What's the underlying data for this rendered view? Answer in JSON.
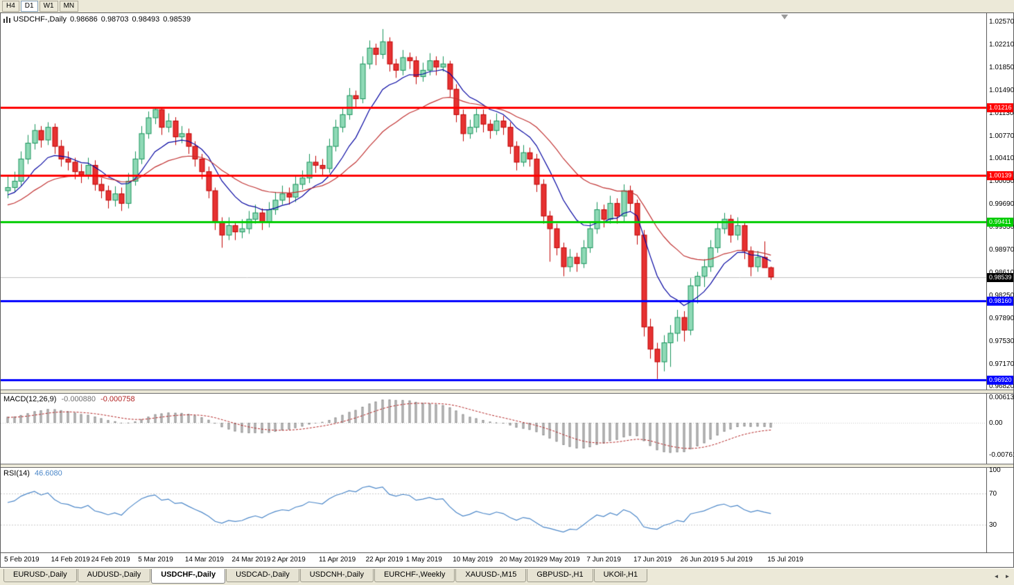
{
  "toolbar": {
    "timeframes": [
      "H4",
      "D1",
      "W1",
      "MN"
    ],
    "active": "D1"
  },
  "chart": {
    "title": {
      "symbol": "USDCHF-,Daily",
      "open": "0.98686",
      "high": "0.98703",
      "low": "0.98493",
      "close": "0.98539"
    },
    "price_axis": {
      "labels": [
        "1.02570",
        "1.02210",
        "1.01850",
        "1.01490",
        "1.01130",
        "1.00770",
        "1.00410",
        "1.00050",
        "0.99690",
        "0.99330",
        "0.98970",
        "0.98610",
        "0.98250",
        "0.97890",
        "0.97530",
        "0.97170",
        "0.96820"
      ],
      "current_price": "0.98539"
    },
    "hlines": [
      {
        "label": "1.01216",
        "value": 1.01216,
        "color": "#FF0000",
        "name": "resistance-line-upper"
      },
      {
        "label": "1.00139",
        "value": 1.00139,
        "color": "#FF0000",
        "name": "resistance-line-lower"
      },
      {
        "label": "0.99411",
        "value": 0.99411,
        "color": "#00CC00",
        "name": "pivot-line-green"
      },
      {
        "label": "0.98160",
        "value": 0.9816,
        "color": "#0000FF",
        "name": "support-line-upper"
      },
      {
        "label": "0.96920",
        "value": 0.9692,
        "color": "#0000FF",
        "name": "support-line-lower"
      }
    ]
  },
  "macd_panel": {
    "label": "MACD(12,26,9)",
    "main_value": "-0.000880",
    "signal_value": "-0.000758",
    "axis_labels": [
      "0.00613",
      "0.00",
      "-0.00761"
    ]
  },
  "rsi_panel": {
    "label": "RSI(14)",
    "value": "46.6080",
    "axis_labels": [
      "100",
      "70",
      "30"
    ]
  },
  "x_axis": {
    "labels": [
      "5 Feb 2019",
      "14 Feb 2019",
      "24 Feb 2019",
      "5 Mar 2019",
      "14 Mar 2019",
      "24 Mar 2019",
      "2 Apr 2019",
      "11 Apr 2019",
      "22 Apr 2019",
      "1 May 2019",
      "10 May 2019",
      "20 May 2019",
      "29 May 2019",
      "7 Jun 2019",
      "17 Jun 2019",
      "26 Jun 2019",
      "5 Jul 2019",
      "15 Jul 2019"
    ]
  },
  "tab_bar": {
    "items": [
      {
        "label": "EURUSD-,Daily"
      },
      {
        "label": "AUDUSD-,Daily"
      },
      {
        "label": "USDCHF-,Daily"
      },
      {
        "label": "USDCAD-,Daily"
      },
      {
        "label": "USDCNH-,Daily"
      },
      {
        "label": "EURCHF-,Weekly"
      },
      {
        "label": "XAUUSD-,M15"
      },
      {
        "label": "GBPUSD-,H1"
      },
      {
        "label": "UKOil-,H1"
      }
    ],
    "active_index": 2
  },
  "colors": {
    "candle_up_fill": "#8FD9B6",
    "candle_up_border": "#17935B",
    "candle_down_fill": "#E63232",
    "candle_down_border": "#C00000",
    "ma_fast": "#0000A0",
    "ma_slow": "#C03030",
    "macd_hist_fill": "#D0D0D0",
    "macd_hist_border": "#8C8C8C",
    "macd_signal": "#B22222",
    "rsi_line": "#4A86C8",
    "current_price_line": "#C0C0C0",
    "current_price_tag": "#000000"
  },
  "chart_data": {
    "type": "candlestick",
    "title": "USDCHF-,Daily",
    "ylim": [
      0.9675,
      1.027
    ],
    "hline_values": [
      1.01216,
      1.00139,
      0.99411,
      0.9816,
      0.9692
    ],
    "indicators": [
      {
        "name": "MACD",
        "params": [
          12,
          26,
          9
        ],
        "last_main": -0.00088,
        "last_signal": -0.000758,
        "axis_range": [
          0.00613,
          -0.00761
        ]
      },
      {
        "name": "RSI",
        "params": [
          14
        ],
        "last_value": 46.608,
        "levels": [
          70,
          30
        ],
        "axis_range": [
          0,
          100
        ]
      }
    ],
    "overlays": [
      {
        "name": "ma-fast",
        "color": "#0000A0"
      },
      {
        "name": "ma-slow",
        "color": "#C03030"
      }
    ],
    "ohlc": [
      [
        0.999,
        1.0012,
        0.9978,
        0.9995
      ],
      [
        0.9995,
        1.002,
        0.9988,
        1.0005
      ],
      [
        1.0005,
        1.0052,
        0.9998,
        1.004
      ],
      [
        1.004,
        1.0078,
        1.0032,
        1.0065
      ],
      [
        1.0065,
        1.0095,
        1.0055,
        1.0085
      ],
      [
        1.0085,
        1.0092,
        1.0058,
        1.007
      ],
      [
        1.007,
        1.0098,
        1.0062,
        1.009
      ],
      [
        1.009,
        1.0096,
        1.0048,
        1.006
      ],
      [
        1.006,
        1.007,
        1.0028,
        1.004
      ],
      [
        1.004,
        1.0052,
        1.0022,
        1.0035
      ],
      [
        1.0035,
        1.0042,
        1.0008,
        1.002
      ],
      [
        1.002,
        1.0032,
        1.0002,
        1.0015
      ],
      [
        1.0015,
        1.0042,
        1.0008,
        1.003
      ],
      [
        1.003,
        1.0038,
        0.999,
        1.0
      ],
      [
        1.0,
        1.001,
        0.9978,
        0.999
      ],
      [
        0.999,
        0.9998,
        0.9962,
        0.9975
      ],
      [
        0.9975,
        0.9997,
        0.9965,
        0.9985
      ],
      [
        0.9985,
        0.9995,
        0.9958,
        0.997
      ],
      [
        0.997,
        1.0018,
        0.9962,
        1.0005
      ],
      [
        1.0005,
        1.0052,
        0.9998,
        1.004
      ],
      [
        1.004,
        1.0092,
        1.0032,
        1.008
      ],
      [
        1.008,
        1.0115,
        1.0072,
        1.0105
      ],
      [
        1.0105,
        1.0122,
        1.0095,
        1.0118
      ],
      [
        1.0118,
        1.012,
        1.0078,
        1.009
      ],
      [
        1.009,
        1.0112,
        1.0082,
        1.01
      ],
      [
        1.01,
        1.0106,
        1.0062,
        1.0075
      ],
      [
        1.0075,
        1.0092,
        1.0065,
        1.008
      ],
      [
        1.008,
        1.0088,
        1.0048,
        1.006
      ],
      [
        1.006,
        1.0068,
        1.0028,
        1.004
      ],
      [
        1.004,
        1.0048,
        1.0008,
        1.002
      ],
      [
        1.002,
        1.0028,
        0.9978,
        0.999
      ],
      [
        0.999,
        0.9995,
        0.9928,
        0.994
      ],
      [
        0.994,
        0.9948,
        0.99,
        0.992
      ],
      [
        0.992,
        0.9948,
        0.9912,
        0.9935
      ],
      [
        0.9935,
        0.9942,
        0.9912,
        0.9925
      ],
      [
        0.9925,
        0.9945,
        0.9915,
        0.993
      ],
      [
        0.993,
        0.9958,
        0.9922,
        0.9945
      ],
      [
        0.9945,
        0.9968,
        0.9938,
        0.9955
      ],
      [
        0.9955,
        0.9962,
        0.9928,
        0.994
      ],
      [
        0.994,
        0.9972,
        0.9932,
        0.996
      ],
      [
        0.996,
        0.9988,
        0.9952,
        0.9975
      ],
      [
        0.9975,
        0.9998,
        0.9968,
        0.9985
      ],
      [
        0.9985,
        0.9995,
        0.9968,
        0.998
      ],
      [
        0.998,
        1.0012,
        0.9972,
        1.0
      ],
      [
        1.0,
        1.0022,
        0.9992,
        1.001
      ],
      [
        1.001,
        1.0048,
        1.0002,
        1.0035
      ],
      [
        1.0035,
        1.0045,
        1.0018,
        1.003
      ],
      [
        1.003,
        1.004,
        1.0012,
        1.0025
      ],
      [
        1.0025,
        1.0072,
        1.0018,
        1.006
      ],
      [
        1.006,
        1.0102,
        1.0052,
        1.009
      ],
      [
        1.009,
        1.0122,
        1.0082,
        1.011
      ],
      [
        1.011,
        1.0152,
        1.0102,
        1.014
      ],
      [
        1.014,
        1.0148,
        1.0122,
        1.0135
      ],
      [
        1.0135,
        1.0202,
        1.0128,
        1.019
      ],
      [
        1.019,
        1.0227,
        1.0182,
        1.0215
      ],
      [
        1.0215,
        1.0222,
        1.0188,
        1.0205
      ],
      [
        1.0205,
        1.0245,
        1.0198,
        1.0225
      ],
      [
        1.0225,
        1.0232,
        1.0178,
        1.019
      ],
      [
        1.019,
        1.0198,
        1.0168,
        1.018
      ],
      [
        1.018,
        1.0212,
        1.0172,
        1.02
      ],
      [
        1.02,
        1.0208,
        1.0182,
        1.0195
      ],
      [
        1.0195,
        1.0202,
        1.0158,
        1.017
      ],
      [
        1.017,
        1.0192,
        1.0162,
        1.018
      ],
      [
        1.018,
        1.0207,
        1.0172,
        1.0195
      ],
      [
        1.0195,
        1.0202,
        1.0172,
        1.0185
      ],
      [
        1.0185,
        1.0202,
        1.0178,
        1.019
      ],
      [
        1.019,
        1.0195,
        1.0138,
        1.015
      ],
      [
        1.015,
        1.0158,
        1.0098,
        1.011
      ],
      [
        1.011,
        1.0118,
        1.0068,
        1.008
      ],
      [
        1.008,
        1.0102,
        1.0072,
        1.009
      ],
      [
        1.009,
        1.0122,
        1.0082,
        1.011
      ],
      [
        1.011,
        1.0118,
        1.0082,
        1.0095
      ],
      [
        1.0095,
        1.0102,
        1.0072,
        1.0085
      ],
      [
        1.0085,
        1.0112,
        1.0078,
        1.01
      ],
      [
        1.01,
        1.0108,
        1.0078,
        1.009
      ],
      [
        1.009,
        1.0098,
        1.0048,
        1.006
      ],
      [
        1.006,
        1.0068,
        1.0022,
        1.0035
      ],
      [
        1.0035,
        1.0062,
        1.0028,
        1.005
      ],
      [
        1.005,
        1.0058,
        1.0028,
        1.004
      ],
      [
        1.004,
        1.0048,
        0.9988,
        1.0
      ],
      [
        1.0,
        1.0008,
        0.9938,
        0.995
      ],
      [
        0.995,
        0.9958,
        0.9878,
        0.993
      ],
      [
        0.993,
        0.9938,
        0.9888,
        0.99
      ],
      [
        0.99,
        0.9908,
        0.9855,
        0.987
      ],
      [
        0.987,
        0.9898,
        0.9862,
        0.9885
      ],
      [
        0.9885,
        0.9892,
        0.9862,
        0.9875
      ],
      [
        0.9875,
        0.9912,
        0.9868,
        0.99
      ],
      [
        0.99,
        0.9942,
        0.9892,
        0.993
      ],
      [
        0.993,
        0.9972,
        0.9922,
        0.996
      ],
      [
        0.996,
        0.9968,
        0.9932,
        0.9945
      ],
      [
        0.9945,
        0.9982,
        0.9938,
        0.997
      ],
      [
        0.997,
        0.9978,
        0.9938,
        0.995
      ],
      [
        0.995,
        1.0,
        0.9942,
        0.999
      ],
      [
        0.999,
        0.9998,
        0.9958,
        0.997
      ],
      [
        0.997,
        0.9976,
        0.9905,
        0.992
      ],
      [
        0.992,
        0.9928,
        0.976,
        0.9775
      ],
      [
        0.9775,
        0.9788,
        0.9725,
        0.974
      ],
      [
        0.974,
        0.975,
        0.9693,
        0.972
      ],
      [
        0.972,
        0.9762,
        0.9705,
        0.975
      ],
      [
        0.975,
        0.9778,
        0.9712,
        0.9765
      ],
      [
        0.9765,
        0.9802,
        0.9752,
        0.979
      ],
      [
        0.979,
        0.98,
        0.9752,
        0.977
      ],
      [
        0.977,
        0.9852,
        0.9762,
        0.984
      ],
      [
        0.984,
        0.9862,
        0.9812,
        0.9855
      ],
      [
        0.9855,
        0.9882,
        0.9838,
        0.987
      ],
      [
        0.987,
        0.9912,
        0.9862,
        0.99
      ],
      [
        0.99,
        0.9942,
        0.9892,
        0.993
      ],
      [
        0.993,
        0.9955,
        0.9922,
        0.9945
      ],
      [
        0.9945,
        0.9952,
        0.9908,
        0.992
      ],
      [
        0.992,
        0.9948,
        0.9912,
        0.9935
      ],
      [
        0.9935,
        0.9942,
        0.9882,
        0.9895
      ],
      [
        0.9895,
        0.9902,
        0.9855,
        0.987
      ],
      [
        0.987,
        0.9895,
        0.9862,
        0.9885
      ],
      [
        0.9885,
        0.991,
        0.9878,
        0.98686
      ],
      [
        0.98686,
        0.98703,
        0.98493,
        0.98539
      ]
    ]
  }
}
